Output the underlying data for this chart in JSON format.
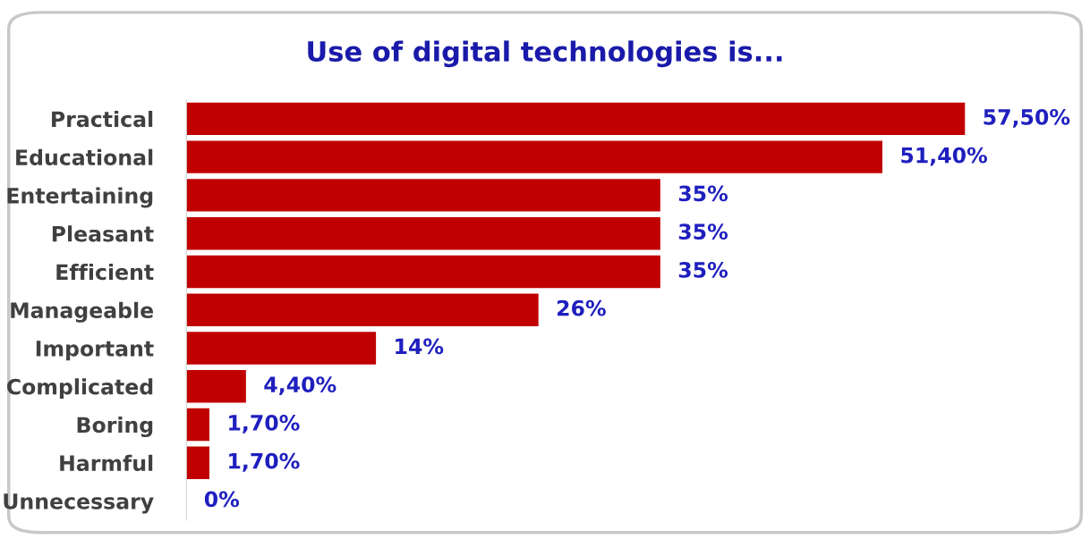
{
  "chart_data": {
    "type": "bar",
    "orientation": "horizontal",
    "title": "Use of digital technologies is...",
    "categories": [
      "Practical",
      "Educational",
      "Entertaining",
      "Pleasant",
      "Efficient",
      "Manageable",
      "Important",
      "Complicated",
      "Boring",
      "Harmful",
      "Unnecessary"
    ],
    "values": [
      57.5,
      51.4,
      35,
      35,
      35,
      26,
      14,
      4.4,
      1.7,
      1.7,
      0
    ],
    "value_labels": [
      "57,50%",
      "51,40%",
      "35%",
      "35%",
      "35%",
      "26%",
      "14%",
      "4,40%",
      "1,70%",
      "1,70%",
      "0%"
    ],
    "color": "#c00000"
  }
}
